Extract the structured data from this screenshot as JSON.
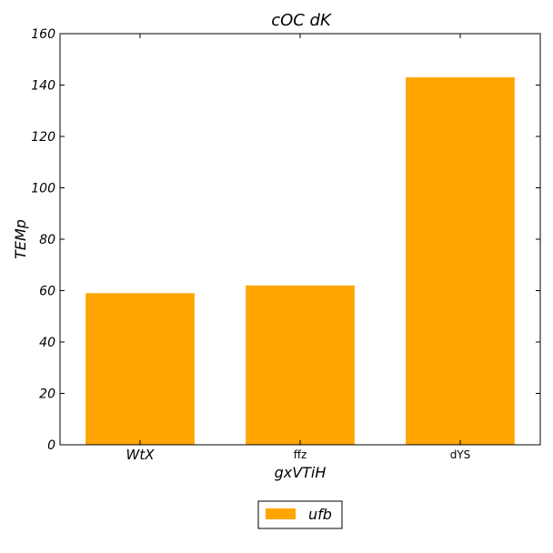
{
  "chart_data": {
    "type": "bar",
    "title": "cOC dK",
    "xlabel": "gxVTiH",
    "ylabel": "TEMp",
    "categories": [
      "WtX",
      "ffz",
      "dYS"
    ],
    "series": [
      {
        "name": "ufb",
        "values": [
          59,
          62,
          143
        ],
        "color": "#ffa500"
      }
    ],
    "ylim": [
      0,
      160
    ],
    "yticks": [
      "0",
      "20",
      "40",
      "60",
      "80",
      "100",
      "120",
      "140",
      "160"
    ],
    "grid": false,
    "legend_position": "bottom-center"
  }
}
